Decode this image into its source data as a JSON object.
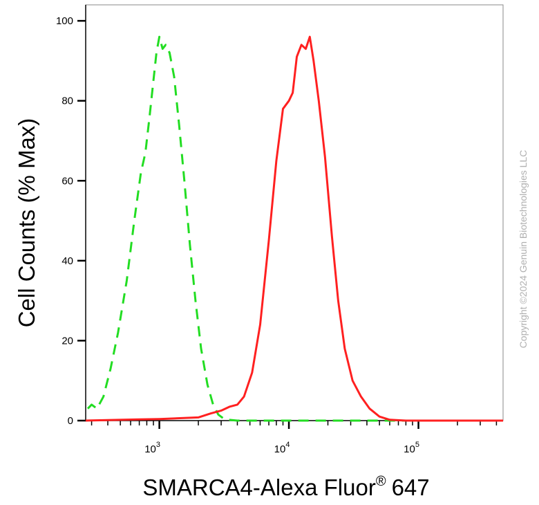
{
  "chart_data": {
    "type": "line",
    "xlabel": "SMARCA4-Alexa Fluor",
    "xlabel_superscript": "®",
    "xlabel_suffix": "647",
    "ylabel": "Cell Counts (% Max)",
    "x_scale": "log",
    "xlim": [
      270,
      450000
    ],
    "ylim": [
      0,
      104
    ],
    "y_ticks": [
      "0",
      "20",
      "40",
      "60",
      "80",
      "100"
    ],
    "x_ticks": [
      {
        "base": "10",
        "exp": "3",
        "value": 1000
      },
      {
        "base": "10",
        "exp": "4",
        "value": 10000
      },
      {
        "base": "10",
        "exp": "5",
        "value": 100000
      }
    ],
    "grid": false,
    "legend": "none",
    "series": [
      {
        "color": "#22dd22",
        "style": "dashed",
        "points": [
          [
            280,
            3
          ],
          [
            300,
            4
          ],
          [
            330,
            3
          ],
          [
            370,
            6
          ],
          [
            420,
            13
          ],
          [
            480,
            22
          ],
          [
            560,
            35
          ],
          [
            640,
            50
          ],
          [
            720,
            62
          ],
          [
            780,
            67
          ],
          [
            840,
            76
          ],
          [
            900,
            85
          ],
          [
            950,
            92
          ],
          [
            1000,
            96
          ],
          [
            1060,
            93
          ],
          [
            1120,
            94
          ],
          [
            1200,
            92
          ],
          [
            1300,
            86
          ],
          [
            1420,
            74
          ],
          [
            1560,
            60
          ],
          [
            1720,
            44
          ],
          [
            1900,
            30
          ],
          [
            2100,
            18
          ],
          [
            2350,
            9
          ],
          [
            2600,
            4
          ],
          [
            2850,
            1.5
          ],
          [
            3200,
            0.3
          ],
          [
            4000,
            0
          ],
          [
            20000,
            0
          ],
          [
            450000,
            0
          ]
        ]
      },
      {
        "color": "#ff2020",
        "style": "solid",
        "points": [
          [
            270,
            0
          ],
          [
            700,
            0.3
          ],
          [
            1000,
            0.4
          ],
          [
            2000,
            0.8
          ],
          [
            2500,
            1.8
          ],
          [
            3000,
            2.5
          ],
          [
            3500,
            3.5
          ],
          [
            4000,
            4
          ],
          [
            4500,
            6
          ],
          [
            5200,
            12
          ],
          [
            6000,
            24
          ],
          [
            7000,
            45
          ],
          [
            8000,
            65
          ],
          [
            9000,
            78
          ],
          [
            10000,
            80
          ],
          [
            10700,
            82
          ],
          [
            11500,
            91
          ],
          [
            12500,
            94
          ],
          [
            13500,
            93
          ],
          [
            14500,
            96
          ],
          [
            15500,
            90
          ],
          [
            17000,
            80
          ],
          [
            19000,
            66
          ],
          [
            21500,
            46
          ],
          [
            24000,
            30
          ],
          [
            27000,
            18
          ],
          [
            31000,
            10
          ],
          [
            36000,
            6
          ],
          [
            42000,
            3
          ],
          [
            50000,
            1
          ],
          [
            60000,
            0.2
          ],
          [
            80000,
            0
          ],
          [
            450000,
            0
          ]
        ]
      }
    ]
  },
  "copyright": "Copyright ©2024 Genuin Biotechnologies LLC"
}
